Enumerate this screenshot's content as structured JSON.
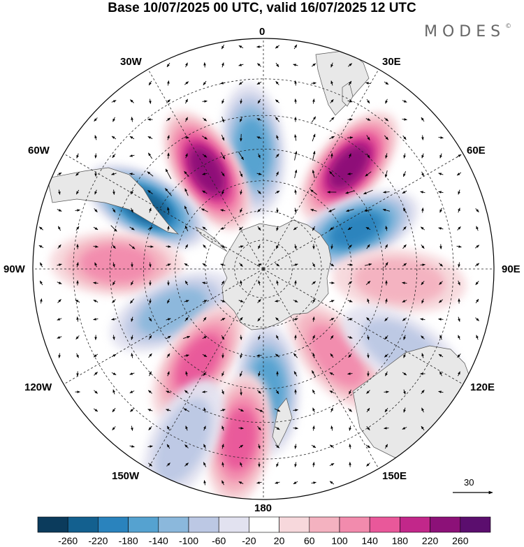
{
  "title": "Base 10/07/2025 00 UTC, valid 16/07/2025 12 UTC",
  "brand": "MODES",
  "brand_mark": "©",
  "longitude_labels": {
    "lon_0": "0",
    "lon_30e": "30E",
    "lon_60e": "60E",
    "lon_90e": "90E",
    "lon_120e": "120E",
    "lon_150e": "150E",
    "lon_180": "180",
    "lon_150w": "150W",
    "lon_120w": "120W",
    "lon_90w": "90W",
    "lon_60w": "60W",
    "lon_30w": "30W"
  },
  "vector_reference": {
    "value": "30"
  },
  "colorbar": {
    "colors": [
      "#0b3b5c",
      "#13608f",
      "#2a83bd",
      "#55a2d0",
      "#8bb8dc",
      "#bcc8e4",
      "#e2e2f0",
      "#ffffff",
      "#f7d8dc",
      "#f4b2c0",
      "#f28bad",
      "#e9589a",
      "#c2278a",
      "#8c1178",
      "#5b0e6e"
    ],
    "ticks": [
      "-260",
      "-220",
      "-180",
      "-140",
      "-100",
      "-60",
      "-20",
      "20",
      "60",
      "100",
      "140",
      "180",
      "220",
      "260"
    ]
  },
  "map": {
    "projection": "south polar stereographic",
    "land_color": "#e8e8e8",
    "anomalies": [
      {
        "name": "pos-lon-40e",
        "lon": 40,
        "lat": -46,
        "value": 250
      },
      {
        "name": "neg-lon-10",
        "lon": -5,
        "lat": -50,
        "value": -170
      },
      {
        "name": "pos-lon-25w",
        "lon": -30,
        "lat": -52,
        "value": 230
      },
      {
        "name": "neg-lon-55w",
        "lon": -62,
        "lat": -46,
        "value": -220
      },
      {
        "name": "neg-lon-70e",
        "lon": 67,
        "lat": -56,
        "value": -180
      },
      {
        "name": "pos-lon-95e",
        "lon": 95,
        "lat": -45,
        "value": 90
      },
      {
        "name": "pos-lon-90w",
        "lon": -88,
        "lat": -42,
        "value": 120
      },
      {
        "name": "neg-lon-110w",
        "lon": -115,
        "lat": -56,
        "value": -110
      },
      {
        "name": "pos-lon-140w",
        "lon": -145,
        "lat": -52,
        "value": 150
      },
      {
        "name": "pos-lon-140e",
        "lon": 140,
        "lat": -52,
        "value": 110
      },
      {
        "name": "neg-lon-175e",
        "lon": 178,
        "lat": -50,
        "value": -160
      },
      {
        "name": "pos-lon-170w",
        "lon": -172,
        "lat": -35,
        "value": 160
      },
      {
        "name": "neg-lon-120e",
        "lon": 120,
        "lat": -38,
        "value": -60
      },
      {
        "name": "neg-lon-165w",
        "lon": -155,
        "lat": -30,
        "value": -80
      }
    ]
  }
}
